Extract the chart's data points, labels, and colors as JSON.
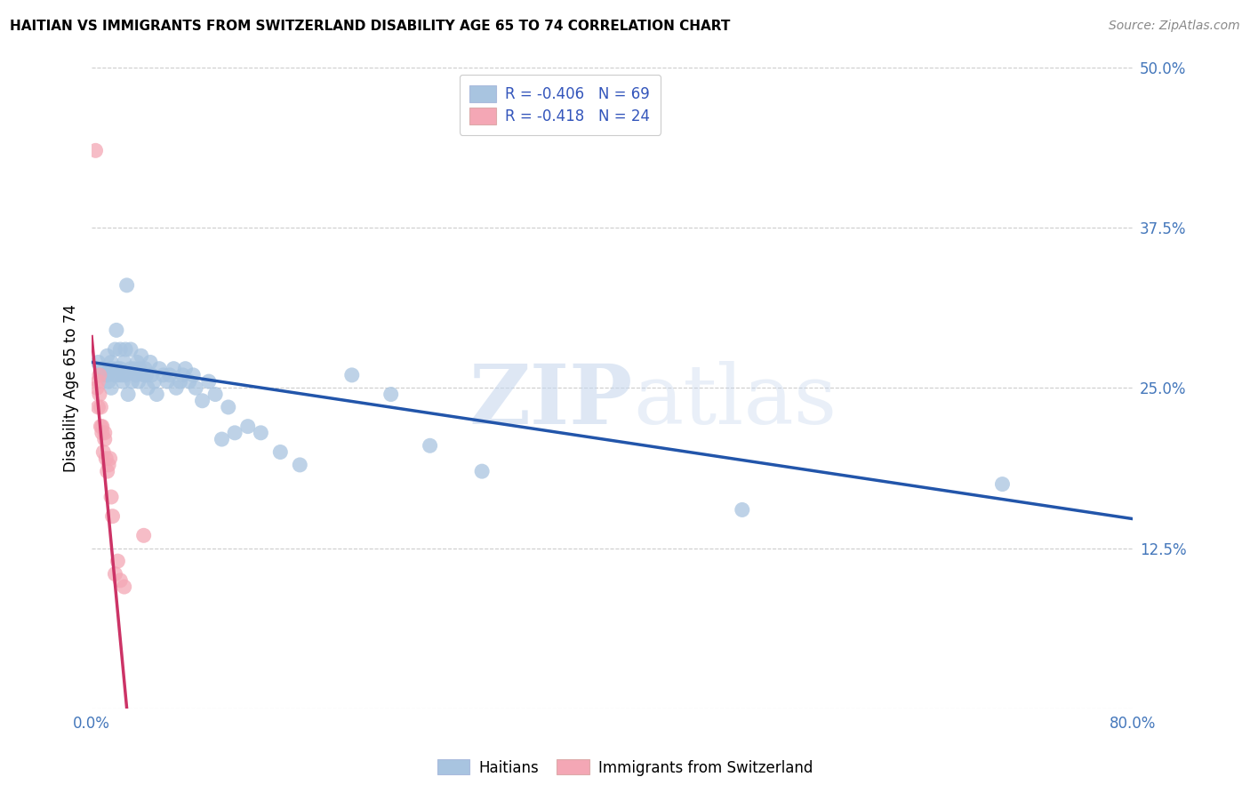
{
  "title": "HAITIAN VS IMMIGRANTS FROM SWITZERLAND DISABILITY AGE 65 TO 74 CORRELATION CHART",
  "source": "Source: ZipAtlas.com",
  "ylabel": "Disability Age 65 to 74",
  "xlim": [
    0.0,
    0.8
  ],
  "ylim": [
    0.0,
    0.5
  ],
  "legend_label1": "Haitians",
  "legend_label2": "Immigrants from Switzerland",
  "r1": "-0.406",
  "n1": "69",
  "r2": "-0.418",
  "n2": "24",
  "color_blue": "#A8C4E0",
  "color_pink": "#F4A7B5",
  "line_color_blue": "#2255AA",
  "line_color_pink": "#CC3366",
  "watermark_zip": "ZIP",
  "watermark_atlas": "atlas",
  "blue_x": [
    0.005,
    0.008,
    0.01,
    0.012,
    0.012,
    0.013,
    0.014,
    0.015,
    0.015,
    0.016,
    0.018,
    0.018,
    0.019,
    0.02,
    0.02,
    0.022,
    0.022,
    0.023,
    0.024,
    0.025,
    0.026,
    0.026,
    0.027,
    0.028,
    0.03,
    0.03,
    0.031,
    0.033,
    0.034,
    0.035,
    0.036,
    0.037,
    0.038,
    0.04,
    0.041,
    0.042,
    0.043,
    0.045,
    0.046,
    0.048,
    0.05,
    0.052,
    0.055,
    0.058,
    0.06,
    0.063,
    0.065,
    0.068,
    0.07,
    0.072,
    0.075,
    0.078,
    0.08,
    0.085,
    0.09,
    0.095,
    0.1,
    0.105,
    0.11,
    0.12,
    0.13,
    0.145,
    0.16,
    0.2,
    0.23,
    0.26,
    0.3,
    0.5,
    0.7
  ],
  "blue_y": [
    0.27,
    0.265,
    0.26,
    0.275,
    0.26,
    0.255,
    0.265,
    0.27,
    0.25,
    0.265,
    0.26,
    0.28,
    0.295,
    0.26,
    0.265,
    0.28,
    0.265,
    0.26,
    0.255,
    0.27,
    0.28,
    0.26,
    0.33,
    0.245,
    0.265,
    0.28,
    0.255,
    0.265,
    0.26,
    0.27,
    0.255,
    0.265,
    0.275,
    0.26,
    0.265,
    0.26,
    0.25,
    0.27,
    0.26,
    0.255,
    0.245,
    0.265,
    0.26,
    0.255,
    0.26,
    0.265,
    0.25,
    0.255,
    0.26,
    0.265,
    0.255,
    0.26,
    0.25,
    0.24,
    0.255,
    0.245,
    0.21,
    0.235,
    0.215,
    0.22,
    0.215,
    0.2,
    0.19,
    0.26,
    0.245,
    0.205,
    0.185,
    0.155,
    0.175
  ],
  "pink_x": [
    0.003,
    0.004,
    0.005,
    0.005,
    0.006,
    0.006,
    0.007,
    0.007,
    0.008,
    0.008,
    0.009,
    0.01,
    0.01,
    0.011,
    0.012,
    0.013,
    0.014,
    0.015,
    0.016,
    0.018,
    0.02,
    0.022,
    0.025,
    0.04
  ],
  "pink_y": [
    0.435,
    0.25,
    0.255,
    0.235,
    0.26,
    0.245,
    0.235,
    0.22,
    0.22,
    0.215,
    0.2,
    0.215,
    0.21,
    0.195,
    0.185,
    0.19,
    0.195,
    0.165,
    0.15,
    0.105,
    0.115,
    0.1,
    0.095,
    0.135
  ],
  "blue_line_x": [
    0.0,
    0.8
  ],
  "blue_line_y": [
    0.27,
    0.148
  ],
  "pink_line_x": [
    0.0,
    0.027
  ],
  "pink_line_y": [
    0.29,
    0.0
  ]
}
